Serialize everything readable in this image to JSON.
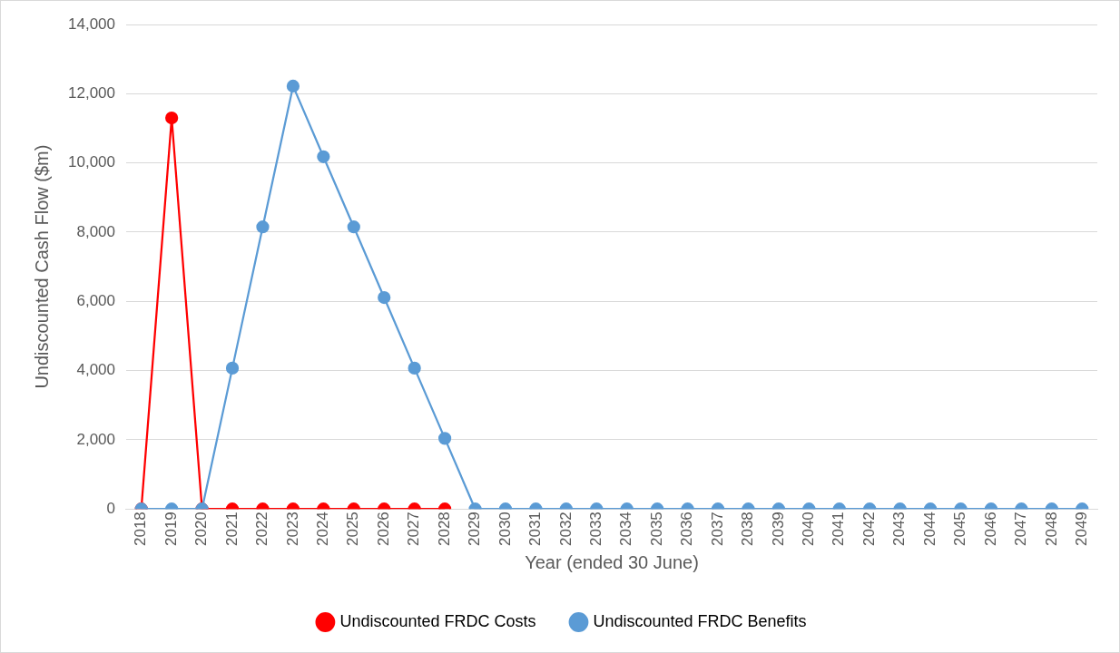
{
  "chart_data": {
    "type": "line",
    "xlabel": "Year (ended 30 June)",
    "ylabel": "Undiscounted Cash Flow ($m)",
    "categories": [
      "2018",
      "2019",
      "2020",
      "2021",
      "2022",
      "2023",
      "2024",
      "2025",
      "2026",
      "2027",
      "2028",
      "2029",
      "2030",
      "2031",
      "2032",
      "2033",
      "2034",
      "2035",
      "2036",
      "2037",
      "2038",
      "2039",
      "2040",
      "2041",
      "2042",
      "2043",
      "2044",
      "2045",
      "2046",
      "2047",
      "2048",
      "2049"
    ],
    "series": [
      {
        "name": "Undiscounted FRDC Costs",
        "color": "#ff0000",
        "values": [
          0,
          11300,
          0,
          0,
          0,
          0,
          0,
          0,
          0,
          0,
          0,
          null,
          null,
          null,
          null,
          null,
          null,
          null,
          null,
          null,
          null,
          null,
          null,
          null,
          null,
          null,
          null,
          null,
          null,
          null,
          null,
          null
        ]
      },
      {
        "name": "Undiscounted FRDC Benefits",
        "color": "#5b9bd5",
        "values": [
          0,
          0,
          0,
          4070,
          8150,
          12220,
          10180,
          8150,
          6110,
          4070,
          2040,
          0,
          0,
          0,
          0,
          0,
          0,
          0,
          0,
          0,
          0,
          0,
          0,
          0,
          0,
          0,
          0,
          0,
          0,
          0,
          0,
          0
        ]
      }
    ],
    "ylim": [
      0,
      14000
    ],
    "yticks": [
      0,
      {
        "value": 2000,
        "label": "2,000"
      },
      {
        "value": 4000,
        "label": "4,000"
      },
      {
        "value": 6000,
        "label": "6,000"
      },
      {
        "value": 8000,
        "label": "8,000"
      },
      {
        "value": 10000,
        "label": "10,000"
      },
      {
        "value": 12000,
        "label": "12,000"
      },
      {
        "value": 14000,
        "label": "14,000"
      }
    ],
    "grid": "y",
    "legend": "bottom",
    "marker": "circle",
    "line_style": "solid"
  }
}
